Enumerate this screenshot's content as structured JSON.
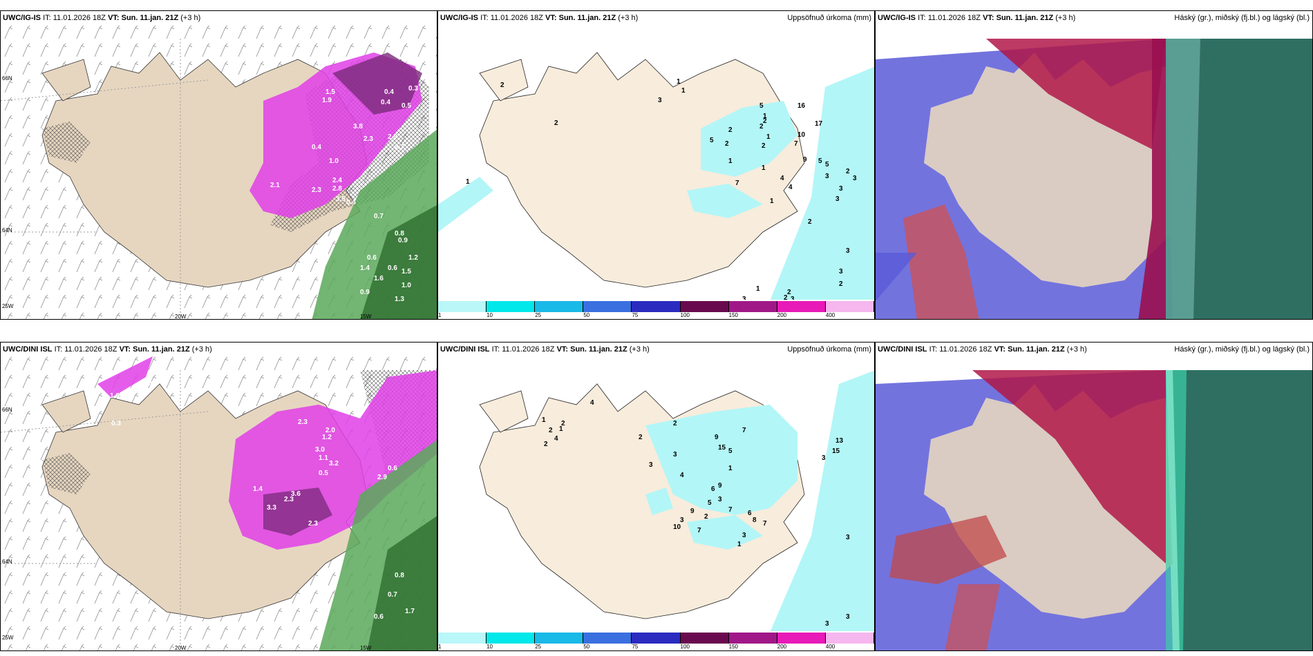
{
  "panels": [
    {
      "model": "UWC/IG-IS",
      "it_label": "IT:",
      "it": "11.01.2026 18Z",
      "vt_label": "VT:",
      "vt": "Sun. 11.jan. 21Z",
      "lead": "(+3 h)",
      "right": ""
    },
    {
      "model": "UWC/IG-IS",
      "it_label": "IT:",
      "it": "11.01.2026 18Z",
      "vt_label": "VT:",
      "vt": "Sun. 11.jan. 21Z",
      "lead": "(+3 h)",
      "right": "Uppsöfnuð úrkoma (mm)"
    },
    {
      "model": "UWC/IG-IS",
      "it_label": "IT:",
      "it": "11.01.2026 18Z",
      "vt_label": "VT:",
      "vt": "Sun. 11.jan. 21Z",
      "lead": "(+3 h)",
      "right": "Háský (gr.), miðský (fj.bl.) og lágský (bl.)"
    },
    {
      "model": "UWC/DINI ISL",
      "it_label": "IT:",
      "it": "11.01.2026 18Z",
      "vt_label": "VT:",
      "vt": "Sun. 11.jan. 21Z",
      "lead": "(+3 h)",
      "right": ""
    },
    {
      "model": "UWC/DINI ISL",
      "it_label": "IT:",
      "it": "11.01.2026 18Z",
      "vt_label": "VT:",
      "vt": "Sun. 11.jan. 21Z",
      "lead": "(+3 h)",
      "right": "Uppsöfnuð úrkoma (mm)"
    },
    {
      "model": "UWC/DINI ISL",
      "it_label": "IT:",
      "it": "11.01.2026 18Z",
      "vt_label": "VT:",
      "vt": "Sun. 11.jan. 21Z",
      "lead": "(+3 h)",
      "right": "Háský (gr.), miðský (fj.bl.) og lágský (bl.)"
    }
  ],
  "coords": {
    "lat66": "66N",
    "lat64": "64N",
    "lon25": "25W",
    "lon20": "20W",
    "lon15": "15W"
  },
  "colorbar": {
    "colors": [
      "#b9f7f8",
      "#00e8ea",
      "#19b9e8",
      "#3a6fe0",
      "#2b2bc0",
      "#6a0a4e",
      "#a01888",
      "#e81ab8",
      "#f6b6ee"
    ],
    "ticks": [
      "1",
      "10",
      "25",
      "50",
      "75",
      "100",
      "150",
      "200",
      "400"
    ]
  },
  "colors": {
    "land": "#e6d6c0",
    "precip_land": "#f8ecdc",
    "wind": "#8a8a8a",
    "precip": "#e040e8",
    "rain": "#5aa85a",
    "cyan": "#b3f6f7"
  },
  "accum_top": [
    "2",
    "1",
    "2",
    "3",
    "1",
    "1",
    "2",
    "2",
    "5",
    "16",
    "2",
    "1",
    "17",
    "1",
    "2",
    "10",
    "7",
    "2",
    "5",
    "1",
    "9",
    "5",
    "1",
    "7",
    "4",
    "4",
    "5",
    "3",
    "2",
    "3",
    "3",
    "3",
    "1",
    "2",
    "3",
    "3",
    "2",
    "1",
    "3",
    "2",
    "2",
    "3"
  ],
  "accum_bot": [
    "1",
    "1",
    "2",
    "4",
    "2",
    "2",
    "4",
    "2",
    "2",
    "7",
    "9",
    "15",
    "5",
    "3",
    "3",
    "4",
    "13",
    "15",
    "3",
    "1",
    "9",
    "6",
    "5",
    "2",
    "7",
    "9",
    "3",
    "10",
    "7",
    "6",
    "8",
    "7",
    "3",
    "1",
    "3",
    "3",
    "3",
    "3"
  ],
  "prec_top": [
    "0.4",
    "0.3",
    "0.5",
    "0.4",
    "1.5",
    "1.9",
    "2.3",
    "0.4",
    "1.0",
    "3.8",
    "2.9",
    "2.7",
    "2.4",
    "2.1",
    "2.3",
    "2.8",
    "3.5",
    "0.4",
    "0.7",
    "0.8",
    "0.9",
    "0.6",
    "0.6",
    "1.4",
    "1.6",
    "1.5",
    "1.2",
    "1.0",
    "0.9",
    "1.3"
  ],
  "prec_bot": [
    "2.0",
    "1.6",
    "0.3",
    "2.3",
    "2.0",
    "1.2",
    "3.0",
    "1.1",
    "3.2",
    "0.5",
    "2.9",
    "1.4",
    "3.6",
    "2.3",
    "3.3",
    "2.3",
    "0.6",
    "0.8",
    "0.7",
    "1.7",
    "0.6"
  ]
}
